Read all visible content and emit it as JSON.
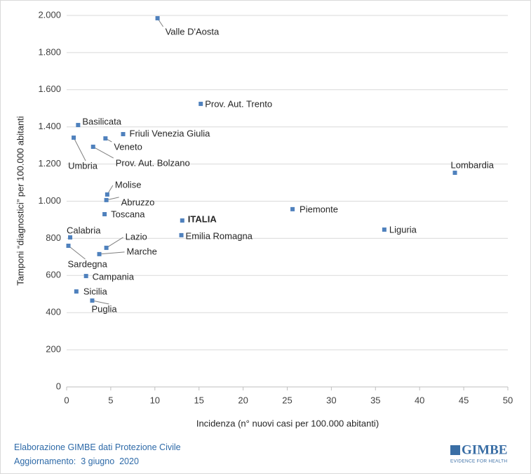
{
  "chart_data": {
    "type": "scatter",
    "xlabel": "Incidenza (n° nuovi casi per 100.000 abitanti)",
    "ylabel": "Tamponi “diagnostici” per 100.000 abitanti",
    "labels": [
      "Valle D'Aosta",
      "Prov. Aut. Trento",
      "Basilicata",
      "Friuli Venezia Giulia",
      "Umbria",
      "Veneto",
      "Prov. Aut. Bolzano",
      "Lombardia",
      "Molise",
      "Abruzzo",
      "Piemonte",
      "Toscana",
      "ITALIA",
      "Liguria",
      "Emilia Romagna",
      "Calabria",
      "Lazio",
      "Sardegna",
      "Marche",
      "Campania",
      "Sicilia",
      "Puglia"
    ],
    "x": [
      10.3,
      15.2,
      1.3,
      6.4,
      0.8,
      4.4,
      3.0,
      44.0,
      4.6,
      4.5,
      25.6,
      4.3,
      13.1,
      36.0,
      13.0,
      0.4,
      4.5,
      0.2,
      3.7,
      2.2,
      1.1,
      2.9
    ],
    "values": [
      1985,
      1524,
      1410,
      1361,
      1342,
      1338,
      1293,
      1153,
      1036,
      1006,
      957,
      930,
      896,
      847,
      817,
      805,
      749,
      760,
      715,
      597,
      514,
      465
    ],
    "color": "#4f81bd",
    "xlim": [
      0,
      50
    ],
    "xticks": [
      0,
      5,
      10,
      15,
      20,
      25,
      30,
      35,
      40,
      45,
      50
    ],
    "ylim": [
      0,
      2000
    ],
    "yticks": [
      0,
      200,
      400,
      600,
      800,
      {
        "value": 1000,
        "label": "1.000"
      },
      {
        "value": 1200,
        "label": "1.200"
      },
      {
        "value": 1400,
        "label": "1.400"
      },
      {
        "value": 1600,
        "label": "1.600"
      },
      {
        "value": 1800,
        "label": "1.800"
      },
      {
        "value": 2000,
        "label": "2.000"
      }
    ],
    "grid": true
  },
  "footer": {
    "source": "Elaborazione GIMBE dati Protezione Civile",
    "update": "Aggiornamento:  3 giugno  2020"
  },
  "logo": {
    "name": "GIMBE",
    "tagline": "EVIDENCE FOR HEALTH"
  }
}
